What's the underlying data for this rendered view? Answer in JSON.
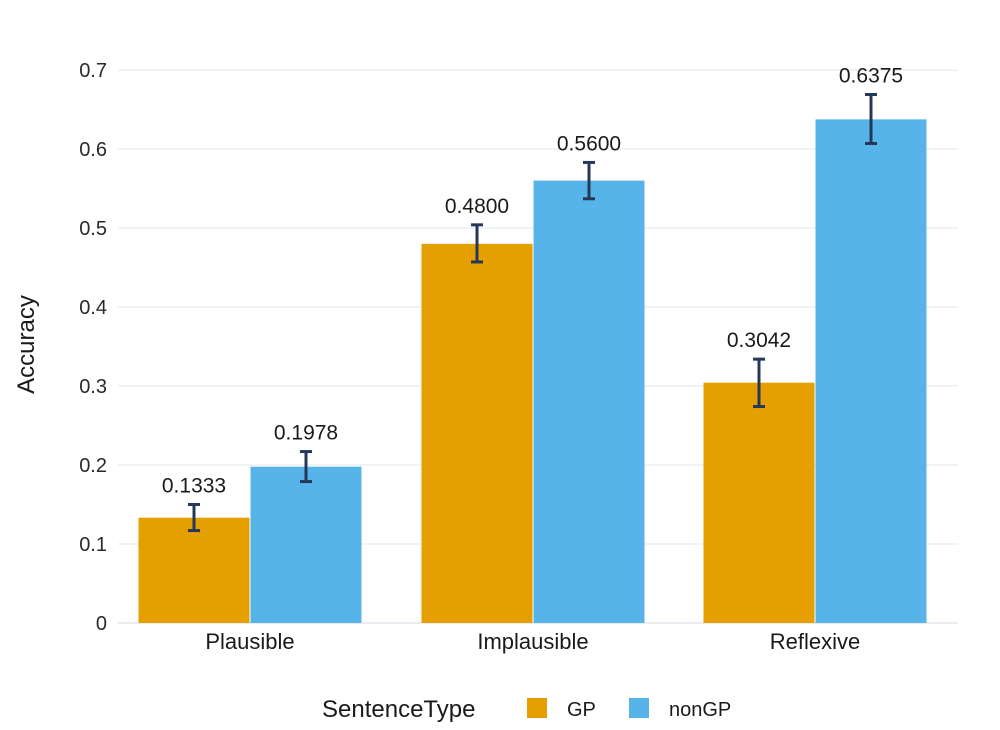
{
  "chart_data": {
    "type": "bar",
    "title": "",
    "xlabel": "",
    "ylabel": "Accuracy",
    "ylim": [
      0,
      0.7
    ],
    "yticks": [
      0,
      0.1,
      0.2,
      0.3,
      0.4,
      0.5,
      0.6,
      0.7
    ],
    "ytick_labels": [
      "0",
      "0.1",
      "0.2",
      "0.3",
      "0.4",
      "0.5",
      "0.6",
      "0.7"
    ],
    "grid": true,
    "categories": [
      "Plausible",
      "Implausible",
      "Reflexive"
    ],
    "legend": {
      "title": "SentenceType",
      "placement": "bottom-center"
    },
    "series": [
      {
        "name": "GP",
        "color": "#E69F00",
        "values": [
          0.1333,
          0.48,
          0.3042
        ],
        "labels": [
          "0.1333",
          "0.4800",
          "0.3042"
        ],
        "err_low": [
          0.117,
          0.457,
          0.274
        ],
        "err_high": [
          0.15,
          0.504,
          0.334
        ]
      },
      {
        "name": "nonGP",
        "color": "#56B4E9",
        "values": [
          0.1978,
          0.56,
          0.6375
        ],
        "labels": [
          "0.1978",
          "0.5600",
          "0.6375"
        ],
        "err_low": [
          0.179,
          0.537,
          0.607
        ],
        "err_high": [
          0.217,
          0.583,
          0.669
        ]
      }
    ],
    "error_bar_color": "#253858"
  }
}
